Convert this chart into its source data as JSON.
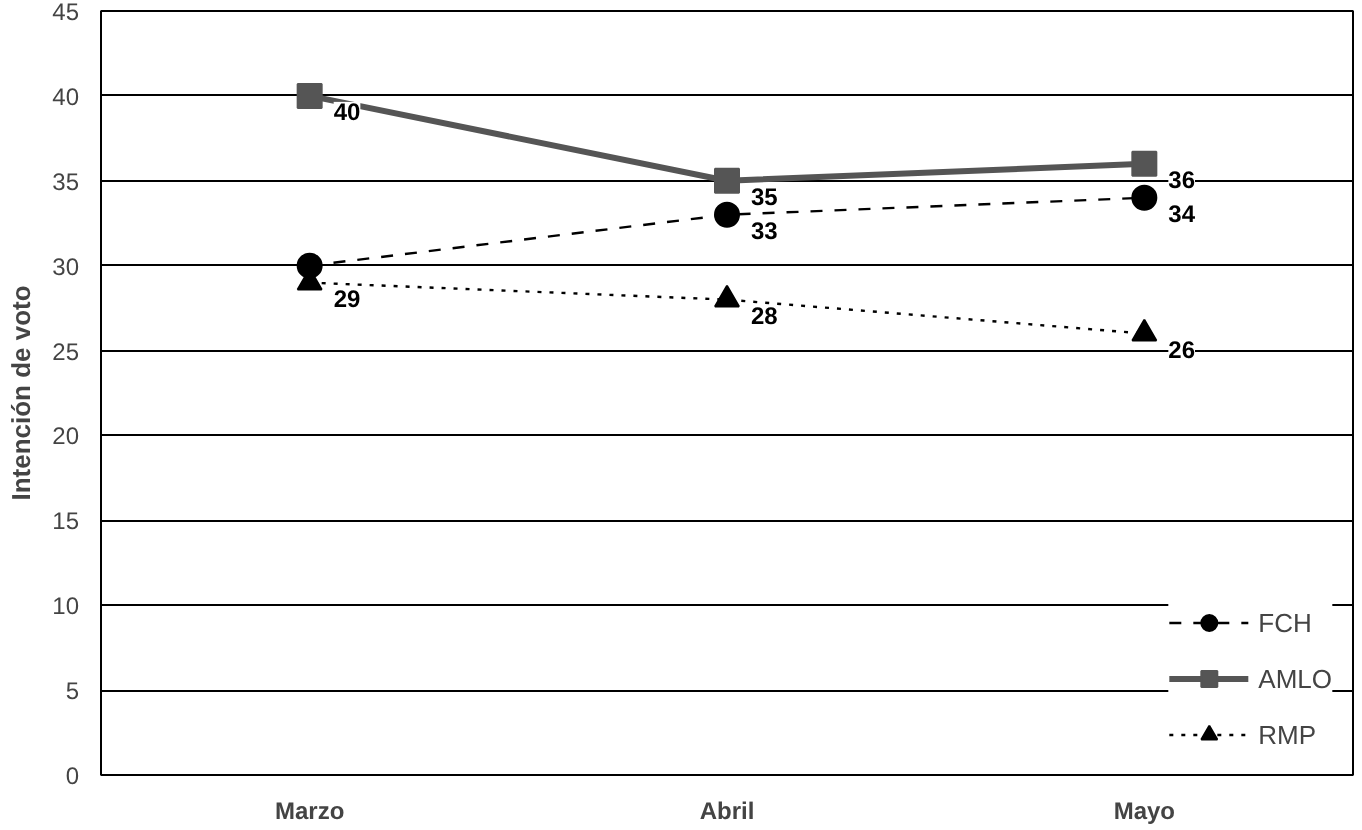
{
  "chart_data": {
    "type": "line",
    "ylabel": "Intención de voto",
    "categories": [
      "Marzo",
      "Abril",
      "Mayo"
    ],
    "ylim": [
      0,
      45
    ],
    "yticks": [
      0,
      5,
      10,
      15,
      20,
      25,
      30,
      35,
      40,
      45
    ],
    "grid": "y",
    "legend": "bottom right",
    "series": [
      {
        "name": "FCH",
        "color": "#000000",
        "values": [
          30,
          33,
          34
        ],
        "value_labels": [
          null,
          "33",
          "34"
        ],
        "marker": "circle",
        "line_style": "dashed"
      },
      {
        "name": "AMLO",
        "color": "#555555",
        "values": [
          40,
          35,
          36
        ],
        "value_labels": [
          "40",
          "35",
          "36"
        ],
        "marker": "square",
        "line_style": "solid"
      },
      {
        "name": "RMP",
        "color": "#000000",
        "values": [
          29,
          28,
          26
        ],
        "value_labels": [
          "29",
          "28",
          "26"
        ],
        "marker": "triangle",
        "line_style": "dotted"
      }
    ]
  }
}
